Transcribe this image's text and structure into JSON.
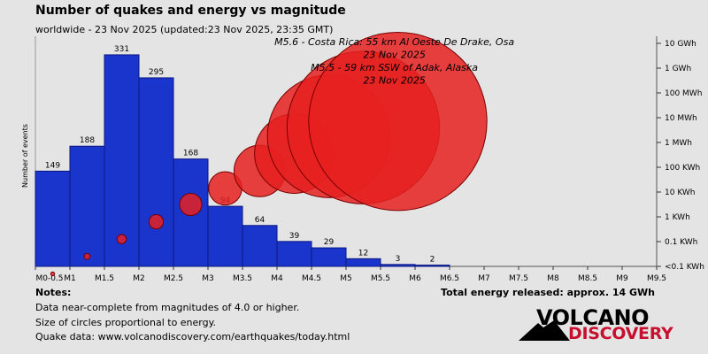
{
  "header": {
    "title": "Number of quakes and energy vs magnitude",
    "subtitle": "worldwide - 23 Nov 2025 (updated:23 Nov 2025, 23:35 GMT)"
  },
  "chart_data": {
    "type": "bar",
    "ylabel": "Number of events",
    "x_ticks": [
      "M0-0.5",
      "M1",
      "M1.5",
      "M2",
      "M2.5",
      "M3",
      "M3.5",
      "M4",
      "M4.5",
      "M5",
      "M5.5",
      "M6",
      "M6.5",
      "M7",
      "M7.5",
      "M8",
      "M8.5",
      "M9",
      "M9.5"
    ],
    "categories": [
      "M0-0.5",
      "M0.5-1",
      "M1-1.5",
      "M1.5-2",
      "M2-2.5",
      "M2.5-3",
      "M3-3.5",
      "M3.5-4",
      "M4-4.5",
      "M4.5-5",
      "M5-5.5",
      "M5.5-6"
    ],
    "values": [
      149,
      188,
      331,
      295,
      168,
      94,
      64,
      39,
      29,
      12,
      3,
      2
    ],
    "bar_color": "#1a35cc",
    "energy_axis_ticks": [
      "10 GWh",
      "1 GWh",
      "100 MWh",
      "10 MWh",
      "1 MWh",
      "100 KWh",
      "10 KWh",
      "1 KWh",
      "0.1 KWh",
      "<0.1 KWh"
    ],
    "energy_circles": [
      {
        "mag": 0.75,
        "energy_level": -2.3
      },
      {
        "mag": 1.25,
        "energy_level": -1.6
      },
      {
        "mag": 1.75,
        "energy_level": -0.9
      },
      {
        "mag": 2.25,
        "energy_level": -0.2
      },
      {
        "mag": 2.75,
        "energy_level": 0.5
      },
      {
        "mag": 3.25,
        "energy_level": 1.15
      },
      {
        "mag": 3.75,
        "energy_level": 1.85
      },
      {
        "mag": 4.25,
        "energy_level": 2.55
      },
      {
        "mag": 4.75,
        "energy_level": 3.25
      },
      {
        "mag": 5.25,
        "energy_level": 3.6
      },
      {
        "mag": 5.75,
        "energy_level": 3.85
      }
    ],
    "circle_color": "#e62020",
    "annotations": [
      {
        "text": "M5.6 - Costa Rica: 55 km Al Oeste De Drake, Osa",
        "mag": 5.7,
        "line": 1
      },
      {
        "text": "23 Nov 2025",
        "mag": 5.7,
        "line": 2
      },
      {
        "text": "M5.5 - 59 km SSW of Adak, Alaska",
        "mag": 5.7,
        "line": 3
      },
      {
        "text": "23 Nov 2025",
        "mag": 5.7,
        "line": 4
      }
    ]
  },
  "notes": {
    "title": "Notes:",
    "lines": [
      "Data near-complete from magnitudes of 4.0 or higher.",
      "Size of circles proportional to energy.",
      "Quake data: www.volcanodiscovery.com/earthquakes/today.html"
    ],
    "total_energy": "Total energy released: approx. 14 GWh"
  },
  "logo": {
    "top": "VOLCANO",
    "bottom": "DISCOVERY"
  }
}
